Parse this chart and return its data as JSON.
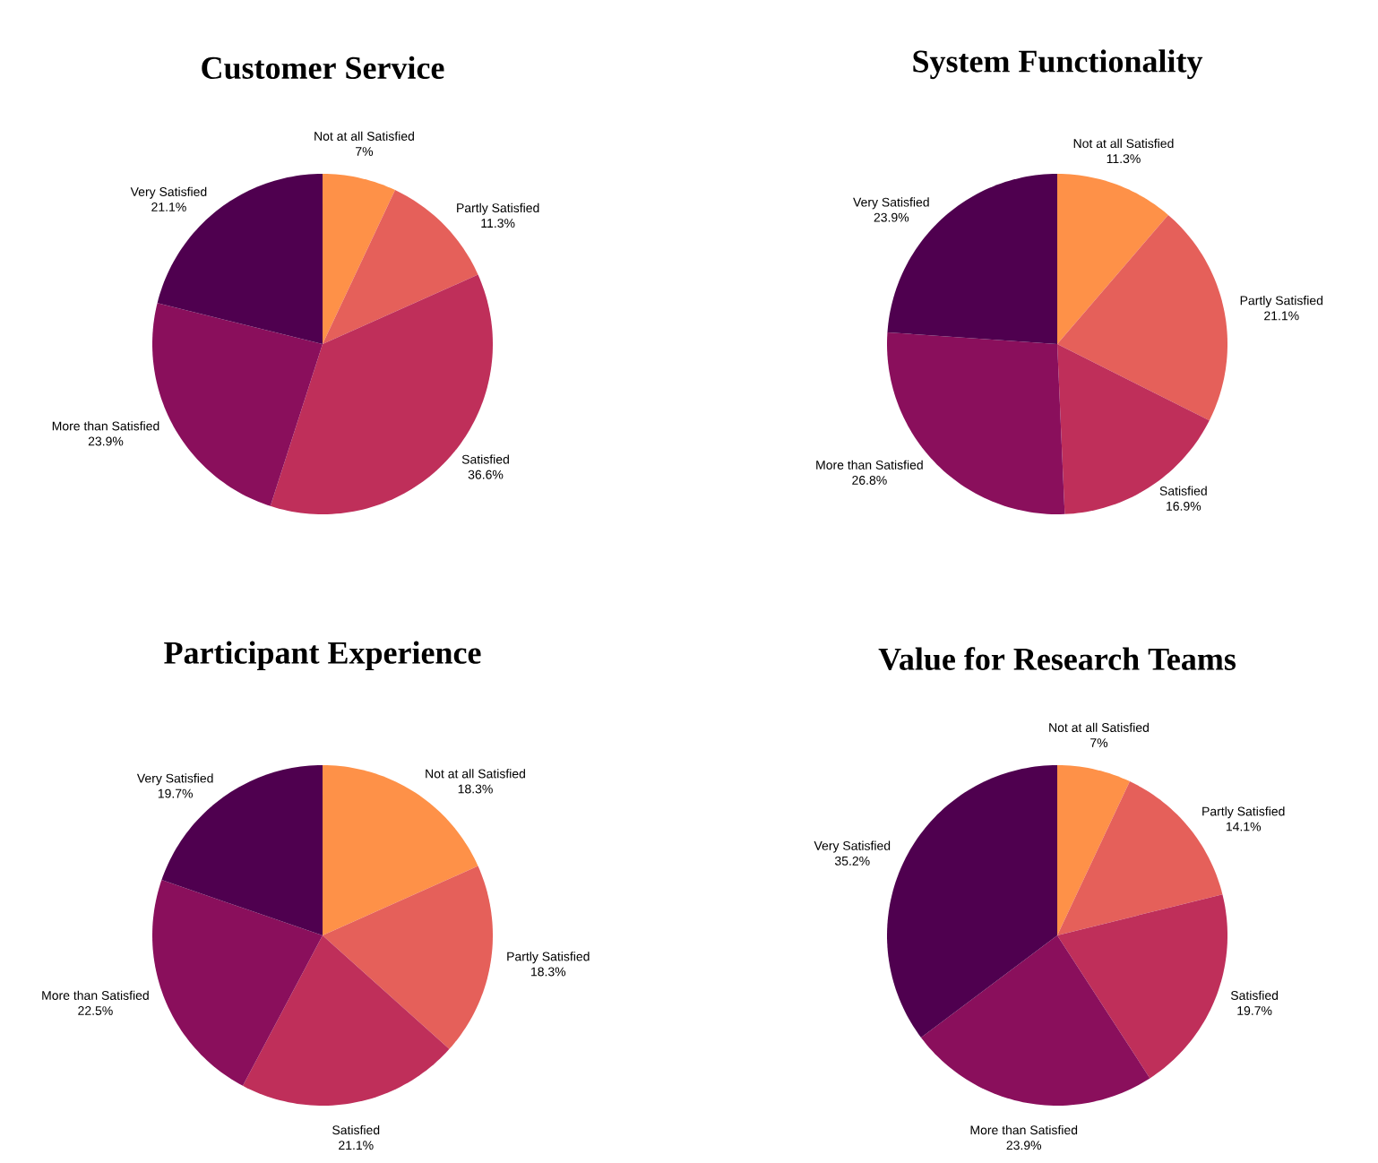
{
  "chart_data": [
    {
      "type": "pie",
      "title": "Customer Service",
      "categories": [
        "Not at all Satisfied",
        "Partly Satisfied",
        "Satisfied",
        "More than Satisfied",
        "Very Satisfied"
      ],
      "values": [
        7,
        11.3,
        36.6,
        23.9,
        21.1
      ],
      "value_labels": [
        "7%",
        "11.3%",
        "36.6%",
        "23.9%",
        "21.1%"
      ],
      "colors": [
        "#fe9148",
        "#e5605a",
        "#bf2f5a",
        "#8a0f5c",
        "#4f004f"
      ]
    },
    {
      "type": "pie",
      "title": "System Functionality",
      "categories": [
        "Not at all Satisfied",
        "Partly Satisfied",
        "Satisfied",
        "More than Satisfied",
        "Very Satisfied"
      ],
      "values": [
        11.3,
        21.1,
        16.9,
        26.8,
        23.9
      ],
      "value_labels": [
        "11.3%",
        "21.1%",
        "16.9%",
        "26.8%",
        "23.9%"
      ],
      "colors": [
        "#fe9148",
        "#e5605a",
        "#bf2f5a",
        "#8a0f5c",
        "#4f004f"
      ]
    },
    {
      "type": "pie",
      "title": "Participant Experience",
      "categories": [
        "Not at all Satisfied",
        "Partly Satisfied",
        "Satisfied",
        "More than Satisfied",
        "Very Satisfied"
      ],
      "values": [
        18.3,
        18.3,
        21.1,
        22.5,
        19.7
      ],
      "value_labels": [
        "18.3%",
        "18.3%",
        "21.1%",
        "22.5%",
        "19.7%"
      ],
      "colors": [
        "#fe9148",
        "#e5605a",
        "#bf2f5a",
        "#8a0f5c",
        "#4f004f"
      ]
    },
    {
      "type": "pie",
      "title": "Value for Research Teams",
      "categories": [
        "Not at all Satisfied",
        "Partly Satisfied",
        "Satisfied",
        "More than Satisfied",
        "Very Satisfied"
      ],
      "values": [
        7,
        14.1,
        19.7,
        23.9,
        35.2
      ],
      "value_labels": [
        "7%",
        "14.1%",
        "19.7%",
        "23.9%",
        "35.2%"
      ],
      "colors": [
        "#fe9148",
        "#e5605a",
        "#bf2f5a",
        "#8a0f5c",
        "#4f004f"
      ]
    }
  ]
}
